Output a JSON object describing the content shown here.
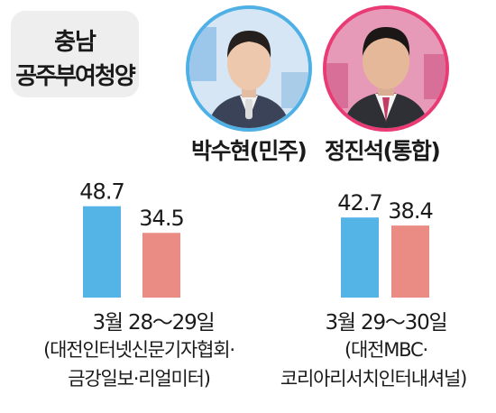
{
  "region": {
    "line1": "충남",
    "line2": "공주부여청양"
  },
  "candidates": [
    {
      "name": "박수현(민주)",
      "color": "#4fb0e6",
      "photo": "portrait-photo"
    },
    {
      "name": "정진석(통합)",
      "color": "#ea3a74",
      "photo": "portrait-photo"
    }
  ],
  "polls": [
    {
      "date": "3월 28～29일",
      "source_line1": "(대전인터넷신문기자협회·",
      "source_line2": "금강일보·리얼미터)"
    },
    {
      "date": "3월 29～30일",
      "source_line1": "(대전MBC·",
      "source_line2": "코리아리서치인터내셔널)"
    }
  ],
  "chart_data": {
    "type": "bar",
    "categories": [
      "3월 28～29일",
      "3월 29～30일"
    ],
    "series": [
      {
        "name": "박수현(민주)",
        "values": [
          48.7,
          42.7
        ],
        "color": "#55b4e6"
      },
      {
        "name": "정진석(통합)",
        "values": [
          34.5,
          38.4
        ],
        "color": "#ea8c84"
      }
    ],
    "ylim": [
      0,
      52
    ]
  }
}
